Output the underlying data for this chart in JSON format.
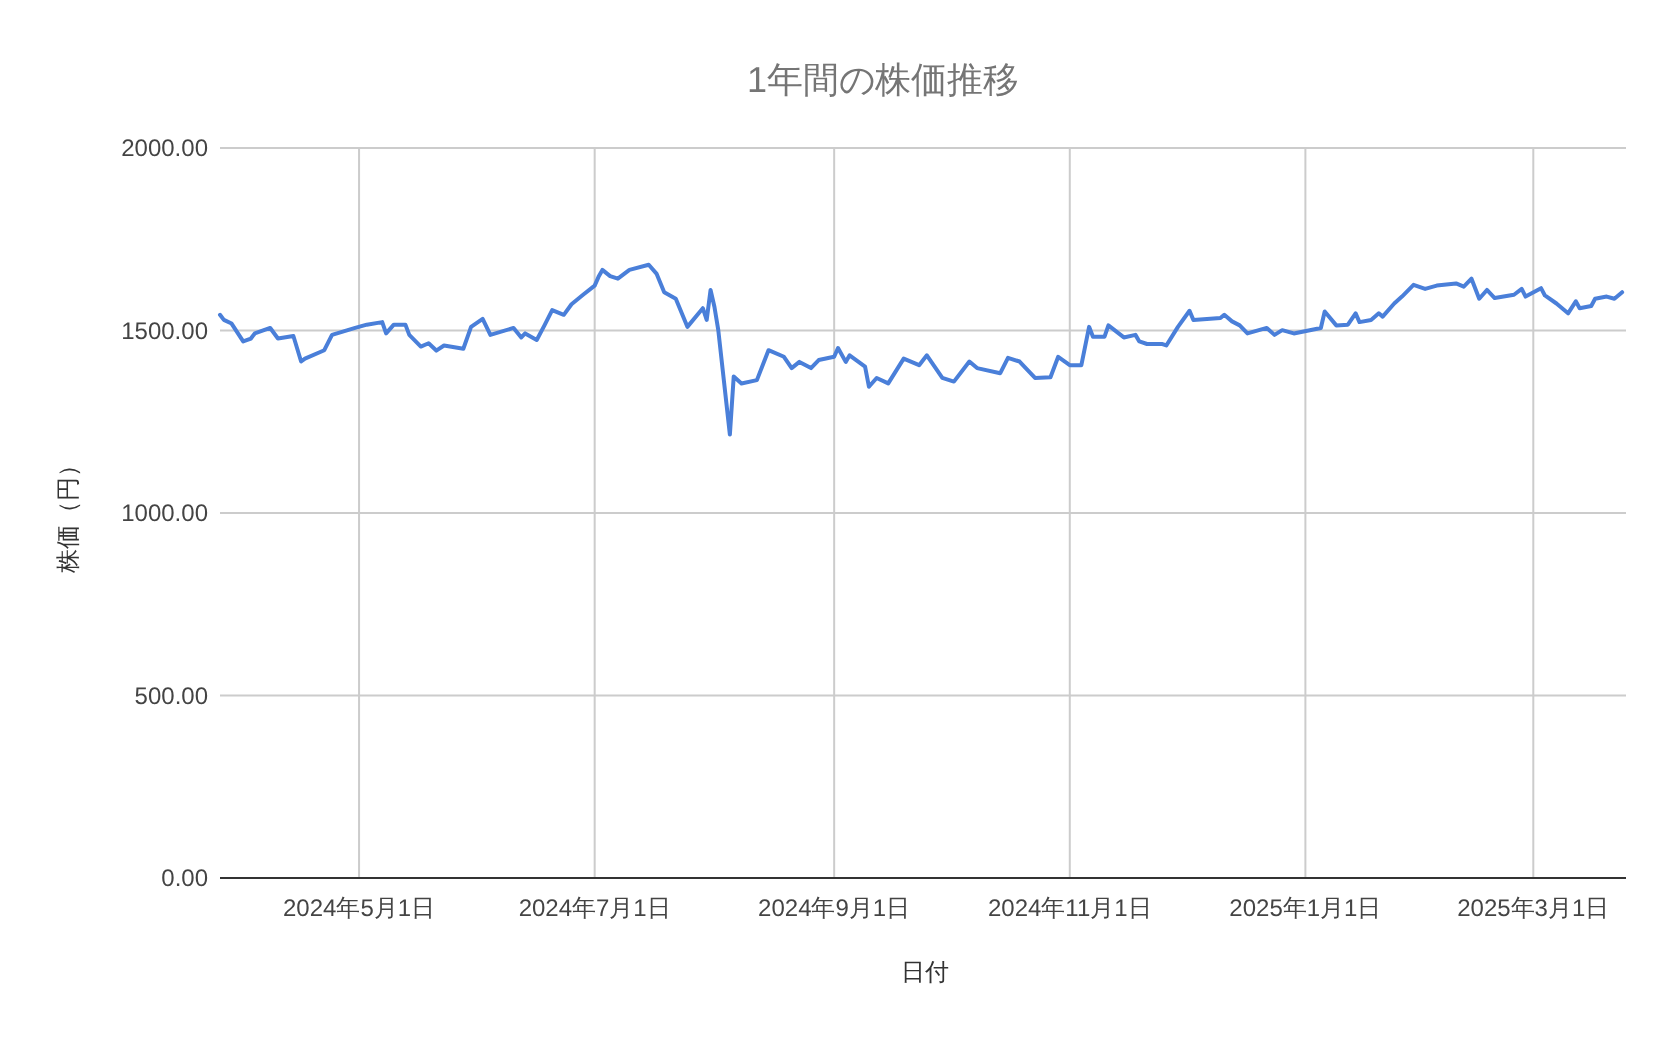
{
  "chart_data": {
    "type": "line",
    "title": "1年間の株価推移",
    "xlabel": "日付",
    "ylabel": "株価（円）",
    "x": [
      "2024-03-26",
      "2024-03-27",
      "2024-03-29",
      "2024-04-01",
      "2024-04-03",
      "2024-04-04",
      "2024-04-08",
      "2024-04-10",
      "2024-04-14",
      "2024-04-16",
      "2024-04-17",
      "2024-04-22",
      "2024-04-24",
      "2024-04-30",
      "2024-05-03",
      "2024-05-07",
      "2024-05-08",
      "2024-05-10",
      "2024-05-13",
      "2024-05-14",
      "2024-05-17",
      "2024-05-19",
      "2024-05-21",
      "2024-05-23",
      "2024-05-28",
      "2024-05-30",
      "2024-06-02",
      "2024-06-04",
      "2024-06-10",
      "2024-06-12",
      "2024-06-13",
      "2024-06-16",
      "2024-06-18",
      "2024-06-20",
      "2024-06-23",
      "2024-06-25",
      "2024-06-28",
      "2024-07-01",
      "2024-07-02",
      "2024-07-03",
      "2024-07-05",
      "2024-07-07",
      "2024-07-10",
      "2024-07-15",
      "2024-07-17",
      "2024-07-19",
      "2024-07-22",
      "2024-07-25",
      "2024-07-29",
      "2024-07-30",
      "2024-07-31",
      "2024-08-01",
      "2024-08-02",
      "2024-08-05",
      "2024-08-06",
      "2024-08-08",
      "2024-08-12",
      "2024-08-15",
      "2024-08-19",
      "2024-08-21",
      "2024-08-23",
      "2024-08-26",
      "2024-08-28",
      "2024-09-01",
      "2024-09-02",
      "2024-09-04",
      "2024-09-05",
      "2024-09-09",
      "2024-09-10",
      "2024-09-12",
      "2024-09-15",
      "2024-09-19",
      "2024-09-23",
      "2024-09-25",
      "2024-09-29",
      "2024-10-02",
      "2024-10-06",
      "2024-10-08",
      "2024-10-14",
      "2024-10-16",
      "2024-10-19",
      "2024-10-23",
      "2024-10-27",
      "2024-10-29",
      "2024-11-01",
      "2024-11-04",
      "2024-11-06",
      "2024-11-07",
      "2024-11-10",
      "2024-11-11",
      "2024-11-15",
      "2024-11-18",
      "2024-11-19",
      "2024-11-21",
      "2024-11-25",
      "2024-11-26",
      "2024-11-29",
      "2024-12-02",
      "2024-12-03",
      "2024-12-10",
      "2024-12-11",
      "2024-12-13",
      "2024-12-15",
      "2024-12-17",
      "2024-12-22",
      "2024-12-24",
      "2024-12-26",
      "2024-12-29",
      "2025-01-05",
      "2025-01-06",
      "2025-01-09",
      "2025-01-12",
      "2025-01-14",
      "2025-01-15",
      "2025-01-18",
      "2025-01-20",
      "2025-01-21",
      "2025-01-24",
      "2025-01-26",
      "2025-01-29",
      "2025-02-01",
      "2025-02-04",
      "2025-02-09",
      "2025-02-11",
      "2025-02-13",
      "2025-02-15",
      "2025-02-17",
      "2025-02-19",
      "2025-02-24",
      "2025-02-26",
      "2025-02-27",
      "2025-03-03",
      "2025-03-04",
      "2025-03-07",
      "2025-03-10",
      "2025-03-12",
      "2025-03-13",
      "2025-03-16",
      "2025-03-17",
      "2025-03-20",
      "2025-03-22",
      "2025-03-24"
    ],
    "series": [
      {
        "color": "#4a7fd9",
        "values": [
          1543,
          1529,
          1519,
          1470,
          1478,
          1492,
          1507,
          1478,
          1485,
          1415,
          1423,
          1446,
          1488,
          1507,
          1516,
          1523,
          1492,
          1516,
          1516,
          1488,
          1456,
          1465,
          1445,
          1459,
          1450,
          1510,
          1532,
          1488,
          1507,
          1481,
          1492,
          1474,
          1514,
          1556,
          1543,
          1572,
          1598,
          1623,
          1647,
          1666,
          1649,
          1642,
          1666,
          1680,
          1656,
          1605,
          1587,
          1510,
          1561,
          1529,
          1611,
          1565,
          1501,
          1215,
          1374,
          1355,
          1364,
          1446,
          1428,
          1397,
          1414,
          1397,
          1419,
          1428,
          1452,
          1414,
          1432,
          1401,
          1346,
          1370,
          1355,
          1423,
          1405,
          1432,
          1370,
          1360,
          1415,
          1397,
          1383,
          1425,
          1415,
          1370,
          1372,
          1428,
          1405,
          1405,
          1510,
          1483,
          1483,
          1514,
          1481,
          1488,
          1470,
          1463,
          1463,
          1459,
          1510,
          1554,
          1529,
          1534,
          1543,
          1525,
          1514,
          1492,
          1507,
          1488,
          1501,
          1492,
          1507,
          1552,
          1514,
          1516,
          1547,
          1523,
          1529,
          1547,
          1538,
          1574,
          1593,
          1625,
          1614,
          1623,
          1629,
          1620,
          1642,
          1587,
          1611,
          1589,
          1598,
          1614,
          1593,
          1616,
          1596,
          1574,
          1547,
          1580,
          1561,
          1567,
          1587,
          1593,
          1587,
          1605
        ]
      }
    ],
    "xlim": [
      "2024-03-26",
      "2025-03-25"
    ],
    "xticks": [
      {
        "value": "2024-05-01",
        "label": "2024年5月1日"
      },
      {
        "value": "2024-07-01",
        "label": "2024年7月1日"
      },
      {
        "value": "2024-09-01",
        "label": "2024年9月1日"
      },
      {
        "value": "2024-11-01",
        "label": "2024年11月1日"
      },
      {
        "value": "2025-01-01",
        "label": "2025年1月1日"
      },
      {
        "value": "2025-03-01",
        "label": "2025年3月1日"
      }
    ],
    "ylim": [
      0,
      2000
    ],
    "yticks": [
      {
        "value": 0,
        "label": "0.00"
      },
      {
        "value": 500,
        "label": "500.00"
      },
      {
        "value": 1000,
        "label": "1000.00"
      },
      {
        "value": 1500,
        "label": "1500.00"
      },
      {
        "value": 2000,
        "label": "2000.00"
      }
    ],
    "grid": true,
    "marker": "none",
    "line_style": "solid"
  }
}
